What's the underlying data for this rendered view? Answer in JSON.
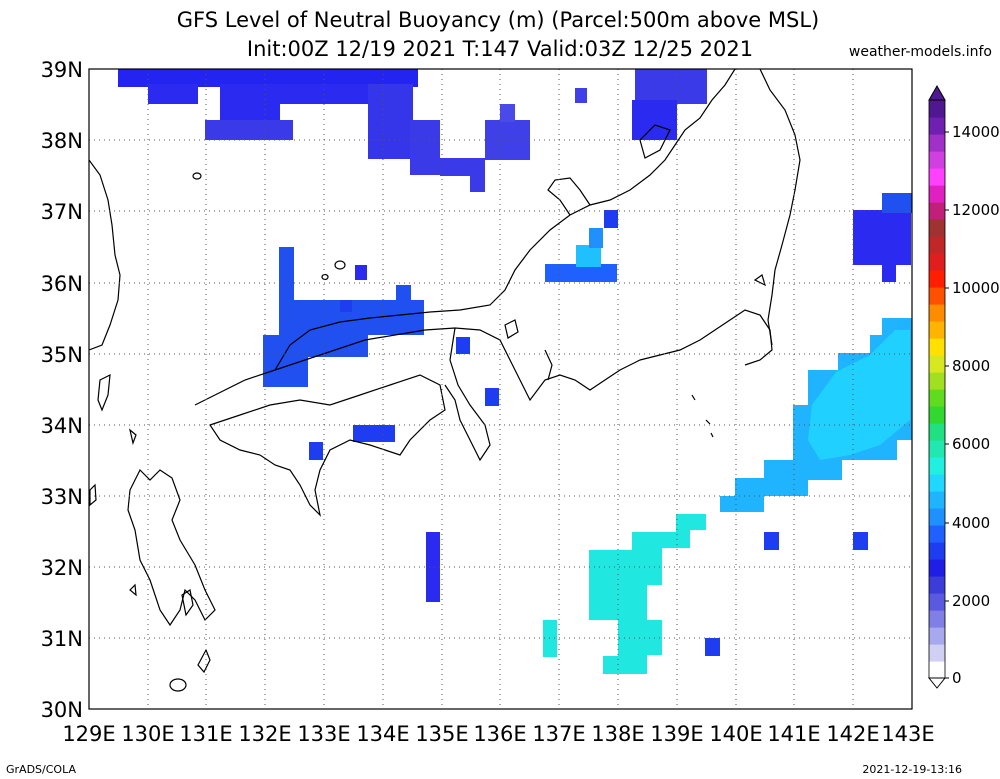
{
  "header": {
    "title_line1": "GFS Level of Neutral Buoyancy (m) (Parcel:500m above MSL)",
    "title_line2": "Init:00Z 12/19 2021 T:147 Valid:03Z 12/25 2021",
    "site": "weather-models.info"
  },
  "footer": {
    "left": "GrADS/COLA",
    "right": "2021-12-19-13:16"
  },
  "map": {
    "lon_range": [
      129,
      143
    ],
    "lat_range": [
      30,
      39
    ],
    "lon_labels": [
      "129E",
      "130E",
      "131E",
      "132E",
      "133E",
      "134E",
      "135E",
      "136E",
      "137E",
      "138E",
      "139E",
      "140E",
      "141E",
      "142E",
      "143E"
    ],
    "lat_labels": [
      "30N",
      "31N",
      "32N",
      "33N",
      "34N",
      "35N",
      "36N",
      "37N",
      "38N",
      "39N"
    ]
  },
  "colorbar": {
    "labels": [
      "0",
      "2000",
      "4000",
      "6000",
      "8000",
      "10000",
      "12000",
      "14000"
    ],
    "colors": [
      "#ffffff",
      "#d0d0f5",
      "#a8a8ee",
      "#7f7fe6",
      "#5a5ae0",
      "#3c3cd8",
      "#1e1ee6",
      "#1e3cf0",
      "#2060ff",
      "#1e90ff",
      "#1eb4ff",
      "#20d8ff",
      "#20f0e0",
      "#20e8b0",
      "#20e080",
      "#30d830",
      "#60dc20",
      "#a0e020",
      "#d8e820",
      "#ffe000",
      "#ffb400",
      "#ff8c00",
      "#ff5000",
      "#ff1e00",
      "#e01e1e",
      "#c02828",
      "#a03232",
      "#c0207a",
      "#e020c0",
      "#ff40ff",
      "#d040e0",
      "#a030c8",
      "#7020b0",
      "#501890"
    ]
  }
}
